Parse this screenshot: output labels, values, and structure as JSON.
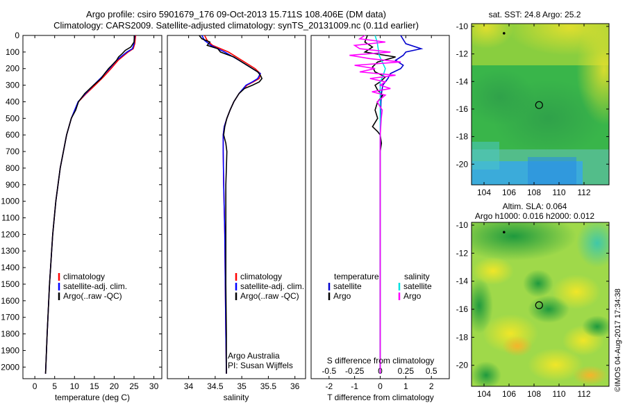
{
  "header": {
    "line1": "Argo profile: csiro 5901679_176 09-Oct-2013 15.711S 108.406E (DM data)",
    "line2": "Climatology: CARS2009. Satellite-adjusted climatology: synTS_20131009.nc (0.11d earlier)"
  },
  "colors": {
    "climatology": "#ff0000",
    "satellite": "#0000ff",
    "argo": "#000000",
    "t_sat": "#0000cd",
    "s_sat": "#00e0e0",
    "s_argo": "#ff00ff"
  },
  "chart_data": [
    {
      "type": "line",
      "name": "temperature-profile",
      "xlabel": "temperature (deg C)",
      "ylabel": "",
      "xlim": [
        -3,
        32
      ],
      "ylim": [
        2070,
        0
      ],
      "xticks": [
        0,
        5,
        10,
        15,
        20,
        25,
        30
      ],
      "yticks": [
        0,
        100,
        200,
        300,
        400,
        500,
        600,
        700,
        800,
        900,
        1000,
        1100,
        1200,
        1300,
        1400,
        1500,
        1600,
        1700,
        1800,
        1900,
        2000
      ],
      "legend": [
        "climatology",
        "satellite-adj. clim.",
        "Argo(..raw -QC)"
      ],
      "series": [
        {
          "name": "climatology",
          "depth": [
            0,
            50,
            80,
            100,
            150,
            200,
            250,
            300,
            350,
            400,
            500,
            600,
            700,
            800,
            1000,
            1200,
            1500,
            1800,
            2040
          ],
          "values": [
            25.4,
            25.2,
            24.8,
            23.5,
            21.0,
            19.2,
            17.3,
            15.2,
            13.0,
            11.0,
            9.2,
            8.0,
            7.2,
            6.4,
            5.3,
            4.5,
            3.7,
            3.1,
            2.7
          ]
        },
        {
          "name": "satellite-adj. clim.",
          "depth": [
            0,
            50,
            80,
            100,
            150,
            200,
            250,
            300,
            350,
            400,
            500,
            600,
            700,
            800,
            1000,
            1200,
            1500,
            1800,
            2040
          ],
          "values": [
            25.2,
            25.0,
            24.6,
            23.2,
            20.6,
            18.8,
            16.9,
            14.8,
            12.8,
            10.9,
            9.2,
            8.0,
            7.2,
            6.4,
            5.3,
            4.5,
            3.7,
            3.1,
            2.7
          ]
        },
        {
          "name": "Argo(..raw -QC)",
          "depth": [
            0,
            40,
            70,
            90,
            110,
            130,
            150,
            180,
            200,
            230,
            260,
            300,
            350,
            400,
            450,
            500,
            600,
            700,
            800,
            1000,
            1200,
            1500,
            1800,
            2040
          ],
          "values": [
            25.1,
            25.0,
            24.2,
            22.8,
            22.0,
            21.1,
            20.6,
            19.4,
            18.6,
            17.6,
            16.7,
            14.8,
            12.6,
            11.0,
            10.3,
            9.2,
            8.0,
            7.2,
            6.4,
            5.3,
            4.5,
            3.7,
            3.1,
            2.7
          ]
        }
      ]
    },
    {
      "type": "line",
      "name": "salinity-profile",
      "xlabel": "salinity",
      "xlim": [
        33.6,
        36.2
      ],
      "ylim": [
        2070,
        0
      ],
      "xticks": [
        34,
        34.5,
        35,
        35.5,
        36
      ],
      "legend": [
        "climatology",
        "satellite-adj. clim.",
        "Argo(..raw -QC)"
      ],
      "annotation": [
        "Argo Australia",
        "PI: Susan Wijffels"
      ],
      "series": [
        {
          "name": "climatology",
          "depth": [
            0,
            30,
            60,
            100,
            150,
            200,
            230,
            260,
            280,
            300,
            350,
            400,
            450,
            500,
            550,
            600,
            700,
            900,
            1200,
            1500,
            1800,
            2040
          ],
          "values": [
            34.3,
            34.35,
            34.45,
            34.75,
            35.0,
            35.25,
            35.35,
            35.33,
            35.22,
            35.1,
            34.95,
            34.85,
            34.78,
            34.72,
            34.67,
            34.65,
            34.65,
            34.66,
            34.68,
            34.69,
            34.7,
            34.71
          ]
        },
        {
          "name": "satellite-adj. clim.",
          "depth": [
            0,
            30,
            60,
            100,
            150,
            200,
            230,
            260,
            280,
            300,
            350,
            400,
            450,
            500,
            550,
            600,
            700,
            900,
            1200,
            1500,
            1800,
            2040
          ],
          "values": [
            34.25,
            34.3,
            34.42,
            34.68,
            34.95,
            35.2,
            35.35,
            35.3,
            35.2,
            35.08,
            34.95,
            34.85,
            34.78,
            34.72,
            34.67,
            34.65,
            34.65,
            34.66,
            34.68,
            34.69,
            34.7,
            34.71
          ]
        },
        {
          "name": "Argo(..raw -QC)",
          "depth": [
            0,
            20,
            40,
            60,
            80,
            100,
            130,
            160,
            190,
            220,
            240,
            260,
            280,
            300,
            320,
            350,
            400,
            450,
            500,
            550,
            600,
            650,
            700,
            800,
            900,
            1000,
            1200,
            1500,
            1800,
            2040
          ],
          "values": [
            34.2,
            34.25,
            34.4,
            34.35,
            34.55,
            34.6,
            34.85,
            35.0,
            35.15,
            35.3,
            35.35,
            35.38,
            35.33,
            35.2,
            35.05,
            34.95,
            34.85,
            34.78,
            34.72,
            34.68,
            34.66,
            34.7,
            34.72,
            34.71,
            34.7,
            34.7,
            34.7,
            34.7,
            34.71,
            34.71
          ]
        }
      ]
    },
    {
      "type": "line",
      "name": "difference-profile",
      "xlabel": "T difference from climatology",
      "xlabel_top": "S difference from climatology",
      "xlim": [
        -2.7,
        2.7
      ],
      "ylim": [
        2070,
        0
      ],
      "xticks": [
        -2,
        -1,
        0,
        1,
        2
      ],
      "xticks_s": [
        -0.5,
        -0.25,
        0,
        0.25,
        0.5
      ],
      "xtick_labels_s": [
        "-0.5",
        "-0.25",
        "0",
        "0.25",
        "0.5"
      ],
      "legend_titles": [
        "temperature",
        "salinity"
      ],
      "legend": [
        "satellite",
        "Argo",
        "satellite",
        "Argo"
      ],
      "series": [
        {
          "name": "T satellite",
          "depth": [
            0,
            50,
            80,
            100,
            120,
            150,
            180,
            200,
            230,
            260,
            300,
            350,
            400,
            500,
            700,
            1000,
            1500,
            2040
          ],
          "values": [
            0.8,
            1.0,
            1.6,
            1.0,
            0.9,
            0.6,
            0.9,
            0.8,
            0.4,
            0.3,
            0.1,
            0.05,
            0.03,
            0.01,
            0,
            0,
            0,
            0
          ]
        },
        {
          "name": "T Argo",
          "depth": [
            0,
            40,
            70,
            100,
            130,
            160,
            190,
            220,
            250,
            280,
            300,
            330,
            360,
            400,
            450,
            500,
            550,
            580,
            600,
            650,
            700,
            800,
            1000,
            1500,
            2040
          ],
          "values": [
            -0.5,
            -0.6,
            -0.3,
            -0.6,
            0.6,
            -0.1,
            -0.3,
            -0.2,
            0.2,
            0.0,
            -0.2,
            -0.1,
            0.1,
            -0.1,
            -0.2,
            -0.1,
            -0.3,
            -0.1,
            0.0,
            0.05,
            0.0,
            0.0,
            0.0,
            0.0,
            0.0
          ]
        },
        {
          "name": "S satellite",
          "depth": [
            0,
            40,
            80,
            120,
            160,
            200,
            240,
            280,
            320,
            360,
            400,
            500,
            700,
            1000,
            1500,
            2040
          ],
          "values": [
            -0.05,
            -0.03,
            -0.02,
            -0.01,
            0.02,
            0.05,
            0.03,
            0.0,
            0.0,
            0.0,
            0.0,
            0.0,
            0.0,
            0.0,
            0.0,
            0.0
          ]
        },
        {
          "name": "S Argo",
          "depth": [
            0,
            20,
            40,
            60,
            80,
            100,
            120,
            140,
            160,
            180,
            200,
            220,
            240,
            260,
            280,
            300,
            320,
            340,
            360,
            400,
            450,
            500,
            600,
            700,
            1000,
            1500,
            2040
          ],
          "values": [
            -0.15,
            -0.2,
            0.05,
            -0.25,
            -0.2,
            0.1,
            -0.3,
            -0.1,
            0.2,
            -0.25,
            -0.05,
            -0.2,
            0.15,
            -0.1,
            0.05,
            0.0,
            0.1,
            -0.08,
            0.05,
            -0.03,
            0.02,
            0.01,
            0.0,
            0.0,
            0.0,
            0.0,
            0.0
          ]
        }
      ]
    },
    {
      "type": "heatmap",
      "name": "sst-map",
      "title": "sat. SST: 24.8  Argo: 25.2",
      "xlim": [
        103,
        114
      ],
      "ylim": [
        -21.5,
        -9.8
      ],
      "xticks": [
        104,
        106,
        108,
        110,
        112
      ],
      "yticks": [
        -10,
        -12,
        -14,
        -16,
        -18,
        -20
      ],
      "argo_position": [
        108.406,
        -15.711
      ],
      "previous_position": [
        105.6,
        -10.5
      ]
    },
    {
      "type": "heatmap",
      "name": "sla-map",
      "title_line1": "Altim. SLA: 0.064",
      "title_line2": "Argo h1000: 0.016 h2000: 0.012",
      "xlim": [
        103,
        114
      ],
      "ylim": [
        -21.5,
        -9.8
      ],
      "xticks": [
        104,
        106,
        108,
        110,
        112
      ],
      "yticks": [
        -10,
        -12,
        -14,
        -16,
        -18,
        -20
      ],
      "argo_position": [
        108.406,
        -15.711
      ],
      "previous_position": [
        105.6,
        -10.5
      ]
    }
  ],
  "footer": {
    "stamp": "©IMOS 04-Aug-2017 17:34:38"
  }
}
